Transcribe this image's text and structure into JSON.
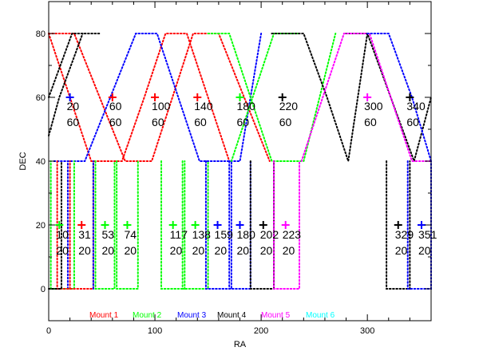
{
  "chart_data": {
    "type": "scatter",
    "xlabel": "RA",
    "ylabel": "DEC",
    "xlim": [
      0,
      360
    ],
    "ylim": [
      -10,
      90
    ],
    "x_ticks": [
      0,
      100,
      200,
      300
    ],
    "y_ticks": [
      0,
      20,
      40,
      60,
      80
    ],
    "grid": false,
    "legend_position": "bottom",
    "legend": [
      {
        "name": "Mount 1",
        "color": "#ff0000"
      },
      {
        "name": "Mount 2",
        "color": "#00ff00"
      },
      {
        "name": "Mount 3",
        "color": "#0000ff"
      },
      {
        "name": "Mount 4",
        "color": "#000000"
      },
      {
        "name": "Mount 5",
        "color": "#ff00ff"
      },
      {
        "name": "Mount 6",
        "color": "#00ffff"
      }
    ],
    "high_fields": {
      "dec": 60,
      "dec_label": "60",
      "points": [
        {
          "ra": 20,
          "label": "20",
          "mount": 3
        },
        {
          "ra": 60,
          "label": "60",
          "mount": 1
        },
        {
          "ra": 100,
          "label": "100",
          "mount": 1
        },
        {
          "ra": 140,
          "label": "140",
          "mount": 1
        },
        {
          "ra": 180,
          "label": "180",
          "mount": 2
        },
        {
          "ra": 220,
          "label": "220",
          "mount": 4
        },
        {
          "ra": 300,
          "label": "300",
          "mount": 5
        },
        {
          "ra": 340,
          "label": "340",
          "mount": 4
        }
      ]
    },
    "low_fields": {
      "dec": 20,
      "dec_label": "20",
      "points": [
        {
          "ra": 10,
          "label": "10",
          "mount": 2
        },
        {
          "ra": 31,
          "label": "31",
          "mount": 1
        },
        {
          "ra": 53,
          "label": "53",
          "mount": 2
        },
        {
          "ra": 74,
          "label": "74",
          "mount": 2
        },
        {
          "ra": 117,
          "label": "117",
          "mount": 2
        },
        {
          "ra": 138,
          "label": "138",
          "mount": 2
        },
        {
          "ra": 159,
          "label": "159",
          "mount": 3
        },
        {
          "ra": 180,
          "label": "180",
          "mount": 3
        },
        {
          "ra": 202,
          "label": "202",
          "mount": 4
        },
        {
          "ra": 223,
          "label": "223",
          "mount": 5
        },
        {
          "ra": 329,
          "label": "329",
          "mount": 4
        },
        {
          "ra": 351,
          "label": "351",
          "mount": 3
        }
      ]
    },
    "high_outlines": [
      {
        "mount": 1,
        "pts": [
          [
            0,
            80
          ],
          [
            24,
            80
          ],
          [
            48,
            60
          ],
          [
            72,
            40
          ],
          [
            97,
            40
          ],
          [
            136,
            80
          ],
          [
            160,
            80
          ],
          [
            184,
            60
          ],
          [
            208,
            40
          ]
        ]
      },
      {
        "mount": 1,
        "pts": [
          [
            0,
            80
          ],
          [
            20,
            60
          ],
          [
            40,
            40
          ],
          [
            69,
            40
          ],
          [
            90,
            60
          ],
          [
            110,
            80
          ],
          [
            130,
            80
          ],
          [
            150,
            60
          ],
          [
            170,
            40
          ]
        ]
      },
      {
        "mount": 3,
        "pts": [
          [
            5,
            40
          ],
          [
            34,
            40
          ],
          [
            58,
            60
          ],
          [
            82,
            80
          ],
          [
            102,
            80
          ],
          [
            122,
            60
          ],
          [
            142,
            40
          ],
          [
            180,
            40
          ],
          [
            200,
            80
          ]
        ]
      },
      {
        "mount": 2,
        "pts": [
          [
            150,
            80
          ],
          [
            170,
            80
          ],
          [
            190,
            60
          ],
          [
            210,
            40
          ],
          [
            240,
            40
          ],
          [
            270,
            80
          ]
        ]
      },
      {
        "mount": 2,
        "pts": [
          [
            172,
            40
          ],
          [
            192,
            60
          ],
          [
            212,
            80
          ],
          [
            236,
            80
          ]
        ]
      },
      {
        "mount": 4,
        "pts": [
          [
            0,
            60
          ],
          [
            22,
            80
          ],
          [
            48,
            80
          ]
        ]
      },
      {
        "mount": 4,
        "pts": [
          [
            0,
            48
          ],
          [
            10,
            60
          ],
          [
            32,
            80
          ]
        ]
      },
      {
        "mount": 4,
        "pts": [
          [
            210,
            80
          ],
          [
            240,
            80
          ],
          [
            262,
            60
          ],
          [
            282,
            40
          ],
          [
            300,
            80
          ]
        ]
      },
      {
        "mount": 4,
        "pts": [
          [
            280,
            80
          ],
          [
            300,
            80
          ],
          [
            322,
            60
          ],
          [
            344,
            40
          ],
          [
            360,
            60
          ]
        ]
      },
      {
        "mount": 5,
        "pts": [
          [
            238,
            40
          ],
          [
            258,
            60
          ],
          [
            278,
            80
          ],
          [
            302,
            80
          ],
          [
            322,
            60
          ],
          [
            342,
            40
          ],
          [
            360,
            40
          ]
        ]
      },
      {
        "mount": 3,
        "pts": [
          [
            300,
            80
          ],
          [
            320,
            80
          ],
          [
            342,
            60
          ],
          [
            360,
            40
          ]
        ]
      }
    ],
    "low_outlines": [
      {
        "mount": 2,
        "pts": [
          [
            2,
            0
          ],
          [
            2,
            40
          ]
        ]
      },
      {
        "mount": 2,
        "pts": [
          [
            24,
            0
          ],
          [
            24,
            40
          ]
        ]
      },
      {
        "mount": 2,
        "pts": [
          [
            2,
            0
          ],
          [
            24,
            0
          ]
        ]
      },
      {
        "mount": 3,
        "pts": [
          [
            18,
            0
          ],
          [
            18,
            40
          ]
        ]
      },
      {
        "mount": 1,
        "pts": [
          [
            8,
            40
          ],
          [
            8,
            0
          ],
          [
            42,
            0
          ],
          [
            42,
            40
          ]
        ]
      },
      {
        "mount": 1,
        "pts": [
          [
            20,
            0
          ],
          [
            20,
            40
          ]
        ]
      },
      {
        "mount": 4,
        "pts": [
          [
            0,
            0
          ],
          [
            12,
            0
          ],
          [
            12,
            40
          ]
        ]
      },
      {
        "mount": 2,
        "pts": [
          [
            44,
            40
          ],
          [
            44,
            0
          ],
          [
            62,
            0
          ],
          [
            62,
            40
          ]
        ]
      },
      {
        "mount": 3,
        "pts": [
          [
            42,
            0
          ],
          [
            42,
            40
          ]
        ]
      },
      {
        "mount": 2,
        "pts": [
          [
            64,
            40
          ],
          [
            64,
            0
          ],
          [
            84,
            0
          ],
          [
            84,
            40
          ]
        ]
      },
      {
        "mount": 2,
        "pts": [
          [
            106,
            40
          ],
          [
            106,
            0
          ],
          [
            128,
            0
          ],
          [
            128,
            40
          ]
        ]
      },
      {
        "mount": 2,
        "pts": [
          [
            126,
            40
          ],
          [
            126,
            0
          ],
          [
            150,
            0
          ],
          [
            150,
            40
          ]
        ]
      },
      {
        "mount": 3,
        "pts": [
          [
            148,
            40
          ],
          [
            148,
            0
          ],
          [
            172,
            0
          ],
          [
            172,
            40
          ]
        ]
      },
      {
        "mount": 3,
        "pts": [
          [
            170,
            40
          ],
          [
            170,
            0
          ],
          [
            190,
            0
          ],
          [
            190,
            40
          ]
        ]
      },
      {
        "mount": 4,
        "pts": [
          [
            190,
            40
          ],
          [
            190,
            0
          ],
          [
            212,
            0
          ],
          [
            212,
            40
          ]
        ]
      },
      {
        "mount": 5,
        "pts": [
          [
            212,
            40
          ],
          [
            212,
            0
          ],
          [
            236,
            0
          ],
          [
            236,
            40
          ]
        ]
      },
      {
        "mount": 4,
        "pts": [
          [
            318,
            40
          ],
          [
            318,
            0
          ],
          [
            340,
            0
          ],
          [
            340,
            40
          ]
        ]
      },
      {
        "mount": 3,
        "pts": [
          [
            338,
            40
          ],
          [
            338,
            0
          ],
          [
            360,
            0
          ],
          [
            360,
            40
          ]
        ]
      }
    ]
  }
}
